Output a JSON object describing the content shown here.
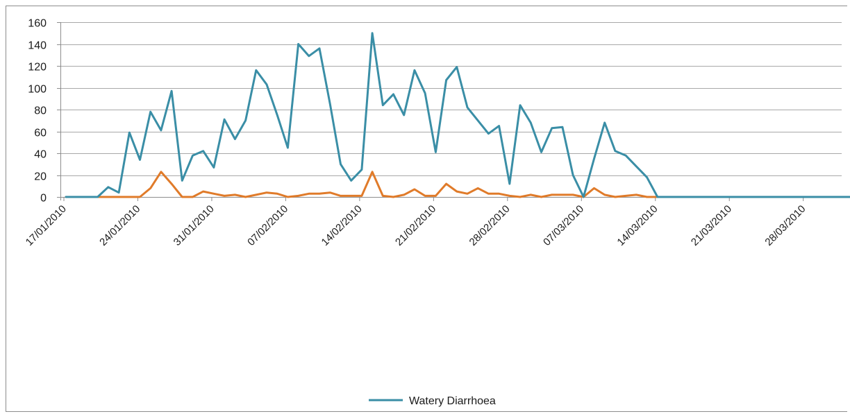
{
  "chart_data": {
    "type": "line",
    "title": "",
    "xlabel": "",
    "ylabel": "",
    "ylim": [
      0,
      160
    ],
    "yticks": [
      0,
      20,
      40,
      60,
      80,
      100,
      120,
      140,
      160
    ],
    "x_start": "17/01/2010",
    "x_end": "03/04/2010",
    "xtick_labels": [
      "17/01/2010",
      "24/01/2010",
      "31/01/2010",
      "07/02/2010",
      "14/02/2010",
      "21/02/2010",
      "28/02/2010",
      "07/03/2010",
      "14/03/2010",
      "21/03/2010",
      "28/03/2010"
    ],
    "grid": "horizontal",
    "legend_position": "bottom",
    "series": [
      {
        "name": "Watery Diarrhoea",
        "color": "#3a8ea6",
        "values": [
          0,
          0,
          0,
          0,
          9,
          4,
          59,
          34,
          78,
          61,
          97,
          15,
          38,
          42,
          27,
          71,
          53,
          70,
          116,
          103,
          75,
          45,
          140,
          129,
          136,
          85,
          30,
          15,
          25,
          150,
          84,
          94,
          75,
          116,
          95,
          41,
          107,
          119,
          82,
          70,
          58,
          65,
          12,
          84,
          68,
          41,
          63,
          64,
          20,
          0,
          35,
          68,
          42,
          38,
          28,
          18,
          0,
          0,
          0,
          0,
          0,
          0,
          0,
          0,
          0,
          0,
          0,
          0,
          0,
          0,
          0,
          0,
          0,
          0,
          0,
          0,
          0
        ]
      },
      {
        "color": "#e07b2a",
        "values": [
          0,
          0,
          0,
          0,
          0,
          0,
          0,
          0,
          8,
          23,
          12,
          0,
          0,
          5,
          3,
          1,
          2,
          0,
          2,
          4,
          3,
          0,
          1,
          3,
          3,
          4,
          1,
          1,
          1,
          23,
          1,
          0,
          2,
          7,
          1,
          1,
          12,
          5,
          3,
          8,
          3,
          3,
          1,
          0,
          2,
          0,
          2,
          2,
          2,
          0,
          8,
          2,
          0,
          1,
          2,
          0,
          0,
          0,
          0,
          0,
          0,
          0,
          0,
          0,
          0,
          0,
          0,
          0,
          0,
          0,
          0,
          0,
          0,
          0,
          0,
          0,
          0
        ]
      }
    ]
  }
}
